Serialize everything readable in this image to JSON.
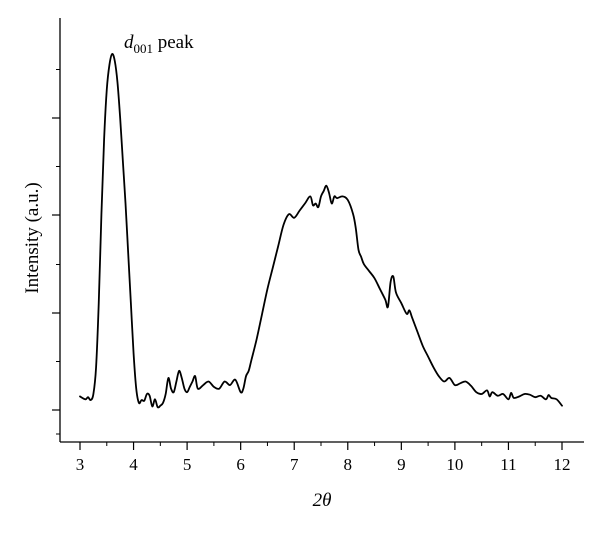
{
  "chart_data": {
    "type": "line",
    "title": "",
    "xlabel": "2θ",
    "ylabel": "Intensity (a.u.)",
    "xlim": [
      3,
      12
    ],
    "ylim": [
      0,
      1.0
    ],
    "x_ticks": [
      "3",
      "4",
      "5",
      "6",
      "7",
      "8",
      "9",
      "10",
      "11",
      "12"
    ],
    "y_tick_labels_shown": false,
    "grid": false,
    "legend": "none",
    "annotation": {
      "text_main": "d",
      "text_sub": "001",
      "text_suffix": " peak",
      "x": 3.35,
      "y": 0.99
    },
    "series": [
      {
        "line_color": "#000000",
        "x": [
          3.0,
          3.1,
          3.15,
          3.2,
          3.25,
          3.3,
          3.35,
          3.4,
          3.45,
          3.5,
          3.55,
          3.6,
          3.65,
          3.7,
          3.75,
          3.8,
          3.85,
          3.9,
          3.95,
          4.0,
          4.05,
          4.1,
          4.15,
          4.2,
          4.25,
          4.3,
          4.35,
          4.4,
          4.45,
          4.5,
          4.55,
          4.6,
          4.65,
          4.7,
          4.75,
          4.8,
          4.85,
          4.9,
          4.95,
          5.0,
          5.05,
          5.1,
          5.15,
          5.2,
          5.3,
          5.4,
          5.5,
          5.6,
          5.7,
          5.8,
          5.9,
          6.0,
          6.05,
          6.1,
          6.15,
          6.2,
          6.3,
          6.4,
          6.5,
          6.6,
          6.7,
          6.8,
          6.9,
          7.0,
          7.1,
          7.2,
          7.3,
          7.35,
          7.4,
          7.45,
          7.5,
          7.55,
          7.6,
          7.65,
          7.7,
          7.75,
          7.8,
          7.9,
          8.0,
          8.1,
          8.15,
          8.2,
          8.25,
          8.3,
          8.4,
          8.5,
          8.6,
          8.7,
          8.75,
          8.8,
          8.85,
          8.9,
          9.0,
          9.1,
          9.15,
          9.2,
          9.3,
          9.4,
          9.5,
          9.6,
          9.7,
          9.8,
          9.9,
          10.0,
          10.1,
          10.2,
          10.3,
          10.4,
          10.5,
          10.6,
          10.65,
          10.7,
          10.8,
          10.9,
          11.0,
          11.05,
          11.1,
          11.2,
          11.3,
          11.4,
          11.5,
          11.6,
          11.7,
          11.75,
          11.8,
          11.9,
          12.0
        ],
        "y": [
          0.038,
          0.03,
          0.036,
          0.028,
          0.045,
          0.12,
          0.3,
          0.55,
          0.76,
          0.9,
          0.97,
          1.0,
          0.98,
          0.92,
          0.82,
          0.7,
          0.58,
          0.44,
          0.3,
          0.16,
          0.06,
          0.02,
          0.028,
          0.026,
          0.045,
          0.04,
          0.01,
          0.03,
          0.008,
          0.012,
          0.02,
          0.045,
          0.09,
          0.06,
          0.05,
          0.08,
          0.11,
          0.09,
          0.06,
          0.05,
          0.065,
          0.08,
          0.095,
          0.06,
          0.07,
          0.08,
          0.065,
          0.06,
          0.08,
          0.07,
          0.085,
          0.05,
          0.06,
          0.095,
          0.11,
          0.14,
          0.2,
          0.27,
          0.34,
          0.4,
          0.46,
          0.52,
          0.55,
          0.54,
          0.56,
          0.58,
          0.6,
          0.575,
          0.58,
          0.57,
          0.6,
          0.615,
          0.63,
          0.61,
          0.58,
          0.6,
          0.595,
          0.6,
          0.59,
          0.55,
          0.51,
          0.45,
          0.43,
          0.41,
          0.39,
          0.37,
          0.34,
          0.31,
          0.29,
          0.36,
          0.375,
          0.33,
          0.3,
          0.27,
          0.28,
          0.26,
          0.22,
          0.18,
          0.15,
          0.12,
          0.095,
          0.08,
          0.09,
          0.07,
          0.075,
          0.08,
          0.068,
          0.05,
          0.045,
          0.055,
          0.038,
          0.05,
          0.04,
          0.045,
          0.03,
          0.048,
          0.034,
          0.038,
          0.045,
          0.043,
          0.036,
          0.04,
          0.03,
          0.042,
          0.034,
          0.03,
          0.012
        ]
      }
    ]
  }
}
